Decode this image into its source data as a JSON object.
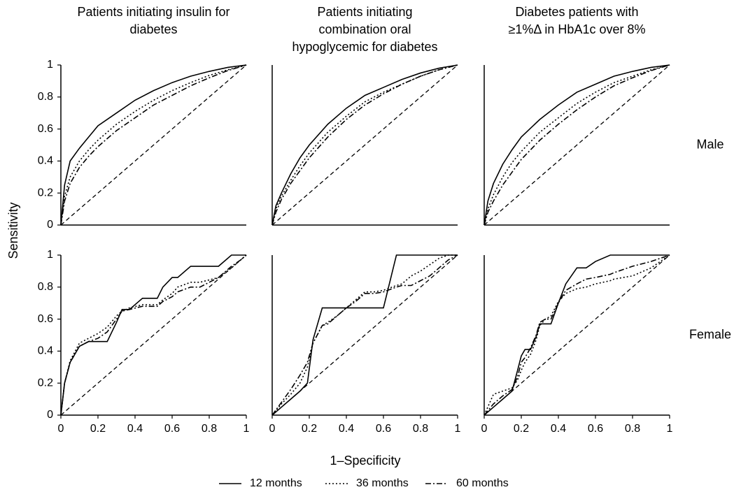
{
  "y_label": "Sensitivity",
  "x_label": "1–Specificity",
  "chart_data": [
    {
      "type": "line",
      "title": [
        "Patients initiating insulin for",
        "diabetes"
      ],
      "x": [
        0,
        0.02,
        0.05,
        0.1,
        0.15,
        0.2,
        0.3,
        0.4,
        0.5,
        0.6,
        0.7,
        0.8,
        0.9,
        1
      ],
      "series": [
        {
          "name": "12 months",
          "color": "#000000",
          "dash": "solid",
          "values": [
            0,
            0.25,
            0.4,
            0.48,
            0.55,
            0.62,
            0.7,
            0.78,
            0.84,
            0.89,
            0.93,
            0.96,
            0.985,
            1
          ]
        },
        {
          "name": "36 months",
          "color": "#000000",
          "dash": "dotted",
          "values": [
            0,
            0.18,
            0.3,
            0.4,
            0.47,
            0.53,
            0.63,
            0.71,
            0.78,
            0.84,
            0.89,
            0.935,
            0.97,
            1
          ]
        },
        {
          "name": "60 months",
          "color": "#000000",
          "dash": "dashdot",
          "values": [
            0,
            0.15,
            0.26,
            0.36,
            0.43,
            0.49,
            0.59,
            0.67,
            0.75,
            0.81,
            0.87,
            0.92,
            0.965,
            1
          ]
        }
      ],
      "xlim": [
        0,
        1
      ],
      "ylim": [
        0,
        1
      ],
      "yticks": [
        0,
        0.2,
        0.4,
        0.6,
        0.8,
        1
      ]
    },
    {
      "type": "line",
      "title": [
        "Patients initiating",
        "combination oral",
        "hypoglycemic for diabetes"
      ],
      "x": [
        0,
        0.02,
        0.05,
        0.1,
        0.15,
        0.2,
        0.3,
        0.4,
        0.5,
        0.6,
        0.7,
        0.8,
        0.9,
        1
      ],
      "series": [
        {
          "name": "12 months",
          "color": "#000000",
          "dash": "solid",
          "values": [
            0,
            0.12,
            0.2,
            0.32,
            0.42,
            0.5,
            0.63,
            0.73,
            0.81,
            0.86,
            0.91,
            0.95,
            0.98,
            1
          ]
        },
        {
          "name": "36 months",
          "color": "#000000",
          "dash": "dotted",
          "values": [
            0,
            0.1,
            0.18,
            0.28,
            0.37,
            0.45,
            0.58,
            0.68,
            0.77,
            0.83,
            0.88,
            0.93,
            0.97,
            1
          ]
        },
        {
          "name": "60 months",
          "color": "#000000",
          "dash": "dashdot",
          "values": [
            0,
            0.08,
            0.16,
            0.26,
            0.34,
            0.42,
            0.55,
            0.66,
            0.75,
            0.82,
            0.88,
            0.93,
            0.97,
            1
          ]
        }
      ],
      "xlim": [
        0,
        1
      ],
      "ylim": [
        0,
        1
      ]
    },
    {
      "type": "line",
      "title": [
        "Diabetes patients with",
        "≥1%Δ in HbA1c over 8%"
      ],
      "row_label": "Male",
      "x": [
        0,
        0.02,
        0.05,
        0.1,
        0.15,
        0.2,
        0.3,
        0.4,
        0.5,
        0.6,
        0.7,
        0.8,
        0.9,
        1
      ],
      "series": [
        {
          "name": "12 months",
          "color": "#000000",
          "dash": "solid",
          "values": [
            0,
            0.15,
            0.26,
            0.38,
            0.47,
            0.55,
            0.66,
            0.75,
            0.83,
            0.88,
            0.93,
            0.96,
            0.985,
            1
          ]
        },
        {
          "name": "36 months",
          "color": "#000000",
          "dash": "dotted",
          "values": [
            0,
            0.1,
            0.19,
            0.3,
            0.39,
            0.46,
            0.58,
            0.67,
            0.76,
            0.83,
            0.89,
            0.93,
            0.97,
            1
          ]
        },
        {
          "name": "60 months",
          "color": "#000000",
          "dash": "dashdot",
          "values": [
            0,
            0.08,
            0.15,
            0.25,
            0.33,
            0.41,
            0.53,
            0.63,
            0.72,
            0.8,
            0.87,
            0.92,
            0.965,
            1
          ]
        }
      ],
      "xlim": [
        0,
        1
      ],
      "ylim": [
        0,
        1
      ]
    },
    {
      "type": "line",
      "x": [
        0,
        0.02,
        0.05,
        0.1,
        0.15,
        0.2,
        0.25,
        0.3,
        0.33,
        0.37,
        0.44,
        0.52,
        0.55,
        0.6,
        0.63,
        0.7,
        0.75,
        0.85,
        0.92,
        0.97,
        1
      ],
      "series": [
        {
          "name": "12 months",
          "color": "#000000",
          "dash": "solid",
          "values": [
            0,
            0.2,
            0.33,
            0.43,
            0.46,
            0.46,
            0.46,
            0.58,
            0.66,
            0.66,
            0.73,
            0.73,
            0.8,
            0.86,
            0.86,
            0.93,
            0.93,
            0.93,
            1,
            1,
            1
          ]
        },
        {
          "name": "36 months",
          "color": "#000000",
          "dash": "dotted",
          "values": [
            0,
            0.2,
            0.34,
            0.45,
            0.48,
            0.51,
            0.55,
            0.62,
            0.65,
            0.67,
            0.69,
            0.69,
            0.72,
            0.76,
            0.8,
            0.83,
            0.83,
            0.86,
            0.92,
            0.97,
            1
          ]
        },
        {
          "name": "60 months",
          "color": "#000000",
          "dash": "dashdot",
          "values": [
            0,
            0.2,
            0.33,
            0.43,
            0.46,
            0.48,
            0.52,
            0.6,
            0.65,
            0.66,
            0.68,
            0.68,
            0.71,
            0.74,
            0.77,
            0.8,
            0.8,
            0.86,
            0.93,
            0.97,
            1
          ]
        }
      ],
      "xlim": [
        0,
        1
      ],
      "ylim": [
        0,
        1
      ],
      "xticks": [
        0,
        0.2,
        0.4,
        0.6,
        0.8,
        1
      ],
      "yticks": [
        0,
        0.2,
        0.4,
        0.6,
        0.8,
        1
      ]
    },
    {
      "type": "line",
      "x": [
        0,
        0.05,
        0.1,
        0.15,
        0.19,
        0.22,
        0.27,
        0.3,
        0.35,
        0.4,
        0.45,
        0.5,
        0.55,
        0.6,
        0.67,
        0.7,
        0.75,
        0.8,
        0.85,
        0.9,
        0.95,
        1
      ],
      "series": [
        {
          "name": "12 months",
          "color": "#000000",
          "dash": "solid",
          "values": [
            0,
            0.05,
            0.1,
            0.15,
            0.2,
            0.47,
            0.67,
            0.67,
            0.67,
            0.67,
            0.67,
            0.67,
            0.67,
            0.67,
            1,
            1,
            1,
            1,
            1,
            1,
            1,
            1
          ]
        },
        {
          "name": "36 months",
          "color": "#000000",
          "dash": "dotted",
          "values": [
            0,
            0.07,
            0.13,
            0.2,
            0.3,
            0.45,
            0.56,
            0.58,
            0.62,
            0.67,
            0.72,
            0.77,
            0.77,
            0.78,
            0.81,
            0.82,
            0.87,
            0.9,
            0.94,
            0.98,
            1,
            1
          ]
        },
        {
          "name": "60 months",
          "color": "#000000",
          "dash": "dashdot",
          "values": [
            0,
            0.08,
            0.16,
            0.25,
            0.33,
            0.45,
            0.56,
            0.57,
            0.62,
            0.67,
            0.71,
            0.76,
            0.76,
            0.77,
            0.8,
            0.81,
            0.81,
            0.84,
            0.87,
            0.92,
            0.97,
            1
          ]
        }
      ],
      "xlim": [
        0,
        1
      ],
      "ylim": [
        0,
        1
      ],
      "xticks": [
        0,
        0.2,
        0.4,
        0.6,
        0.8,
        1
      ]
    },
    {
      "type": "line",
      "row_label": "Female",
      "x": [
        0,
        0.05,
        0.1,
        0.15,
        0.18,
        0.2,
        0.22,
        0.25,
        0.28,
        0.3,
        0.33,
        0.36,
        0.4,
        0.44,
        0.5,
        0.55,
        0.6,
        0.68,
        0.7,
        0.8,
        0.9,
        1
      ],
      "series": [
        {
          "name": "12 months",
          "color": "#000000",
          "dash": "solid",
          "values": [
            0,
            0.05,
            0.1,
            0.15,
            0.28,
            0.37,
            0.41,
            0.41,
            0.49,
            0.57,
            0.57,
            0.57,
            0.7,
            0.82,
            0.92,
            0.92,
            0.96,
            1,
            1,
            1,
            1,
            1
          ]
        },
        {
          "name": "36 months",
          "color": "#000000",
          "dash": "dotted",
          "values": [
            0,
            0.13,
            0.15,
            0.17,
            0.22,
            0.28,
            0.33,
            0.38,
            0.47,
            0.56,
            0.6,
            0.62,
            0.71,
            0.76,
            0.79,
            0.8,
            0.82,
            0.84,
            0.85,
            0.87,
            0.92,
            1
          ]
        },
        {
          "name": "60 months",
          "color": "#000000",
          "dash": "dashdot",
          "values": [
            0,
            0.07,
            0.12,
            0.16,
            0.24,
            0.33,
            0.36,
            0.42,
            0.5,
            0.58,
            0.6,
            0.6,
            0.7,
            0.78,
            0.82,
            0.85,
            0.86,
            0.88,
            0.89,
            0.93,
            0.96,
            1
          ]
        }
      ],
      "xlim": [
        0,
        1
      ],
      "ylim": [
        0,
        1
      ],
      "xticks": [
        0,
        0.2,
        0.4,
        0.6,
        0.8,
        1
      ]
    }
  ]
}
